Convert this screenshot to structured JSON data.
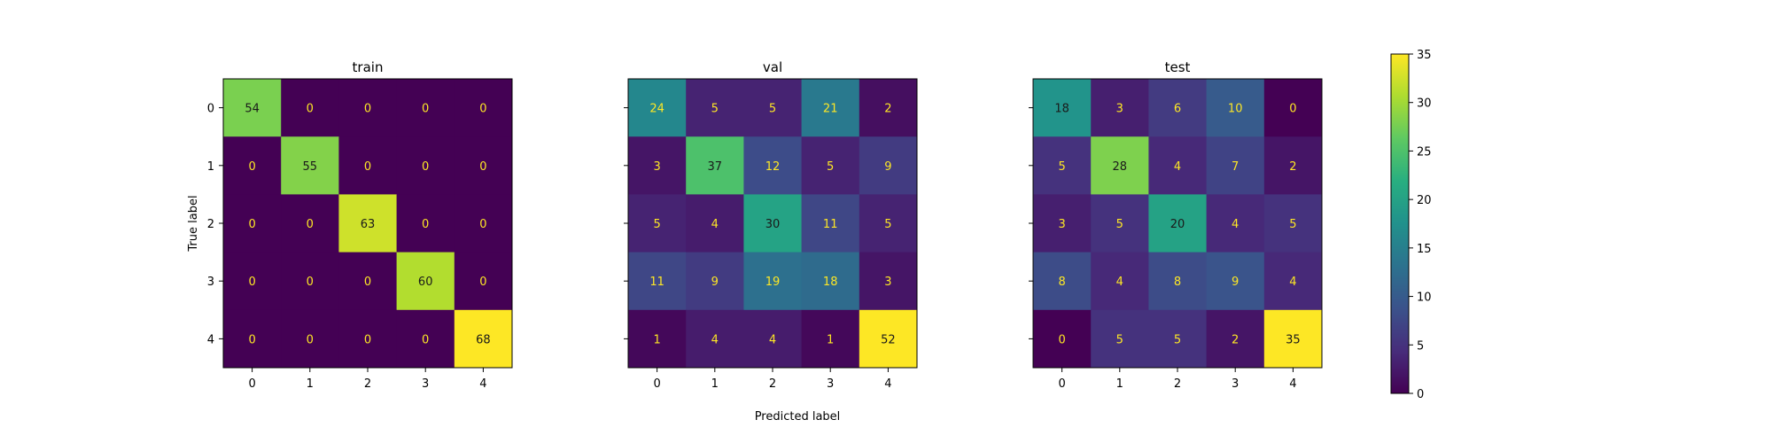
{
  "chart_data": {
    "type": "heatmap",
    "xlabel": "Predicted label",
    "ylabel": "True label",
    "x_ticks": [
      "0",
      "1",
      "2",
      "3",
      "4"
    ],
    "y_ticks": [
      "0",
      "1",
      "2",
      "3",
      "4"
    ],
    "colormap": "viridis",
    "colorbar": {
      "range": [
        0,
        35
      ],
      "ticks": [
        0,
        5,
        10,
        15,
        20,
        25,
        30,
        35
      ]
    },
    "panels": [
      {
        "title": "train",
        "matrix": [
          [
            54,
            0,
            0,
            0,
            0
          ],
          [
            0,
            55,
            0,
            0,
            0
          ],
          [
            0,
            0,
            63,
            0,
            0
          ],
          [
            0,
            0,
            0,
            60,
            0
          ],
          [
            0,
            0,
            0,
            0,
            68
          ]
        ]
      },
      {
        "title": "val",
        "matrix": [
          [
            24,
            5,
            5,
            21,
            2
          ],
          [
            3,
            37,
            12,
            5,
            9
          ],
          [
            5,
            4,
            30,
            11,
            5
          ],
          [
            11,
            9,
            19,
            18,
            3
          ],
          [
            1,
            4,
            4,
            1,
            52
          ]
        ]
      },
      {
        "title": "test",
        "matrix": [
          [
            18,
            3,
            6,
            10,
            0
          ],
          [
            5,
            28,
            4,
            7,
            2
          ],
          [
            3,
            5,
            20,
            4,
            5
          ],
          [
            8,
            4,
            8,
            9,
            4
          ],
          [
            0,
            5,
            5,
            2,
            35
          ]
        ]
      }
    ]
  }
}
